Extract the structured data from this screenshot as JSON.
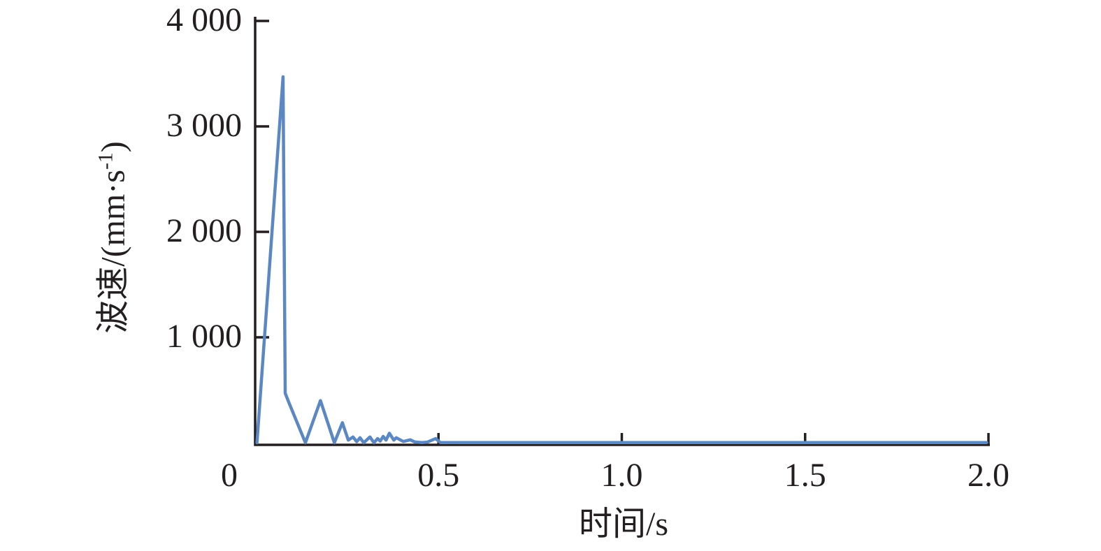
{
  "figure": {
    "background_color": "#ffffff",
    "axis_color": "#231f20",
    "text_color": "#231f20",
    "line_color": "#5b87c3"
  },
  "chart_data": {
    "type": "line",
    "title": "",
    "xlabel": "时间/s",
    "ylabel": "波速/(mm·s⁻¹)",
    "ylabel_parts": {
      "prefix": "波速/(mm·s",
      "superscript": "-1",
      "suffix": ")"
    },
    "xlim": [
      0,
      2.0
    ],
    "ylim": [
      0,
      4000
    ],
    "grid": false,
    "legend_position": "none",
    "origin_label": "0",
    "x_ticks": [
      {
        "value": 0.5,
        "label": "0.5"
      },
      {
        "value": 1.0,
        "label": "1.0"
      },
      {
        "value": 1.5,
        "label": "1.5"
      },
      {
        "value": 2.0,
        "label": "2.0"
      }
    ],
    "y_ticks": [
      {
        "value": 4000,
        "label": "4 000"
      },
      {
        "value": 3000,
        "label": "3 000"
      },
      {
        "value": 2000,
        "label": "2 000"
      },
      {
        "value": 1000,
        "label": "1 000"
      }
    ],
    "series": [
      {
        "name": "波速",
        "color": "#5b87c3",
        "points": [
          [
            0.005,
            0
          ],
          [
            0.076,
            3470
          ],
          [
            0.082,
            470
          ],
          [
            0.092,
            380
          ],
          [
            0.137,
            0
          ],
          [
            0.178,
            400
          ],
          [
            0.216,
            0
          ],
          [
            0.238,
            190
          ],
          [
            0.254,
            25
          ],
          [
            0.267,
            55
          ],
          [
            0.277,
            10
          ],
          [
            0.286,
            48
          ],
          [
            0.296,
            0
          ],
          [
            0.313,
            55
          ],
          [
            0.324,
            0
          ],
          [
            0.334,
            40
          ],
          [
            0.341,
            15
          ],
          [
            0.349,
            60
          ],
          [
            0.357,
            25
          ],
          [
            0.366,
            90
          ],
          [
            0.378,
            25
          ],
          [
            0.385,
            48
          ],
          [
            0.404,
            12
          ],
          [
            0.423,
            28
          ],
          [
            0.435,
            8
          ],
          [
            0.454,
            2
          ],
          [
            0.47,
            6
          ],
          [
            0.492,
            40
          ],
          [
            0.505,
            2
          ],
          [
            0.55,
            2
          ],
          [
            0.7,
            2
          ],
          [
            0.9,
            2
          ],
          [
            1.1,
            2
          ],
          [
            1.3,
            2
          ],
          [
            1.5,
            2
          ],
          [
            1.7,
            2
          ],
          [
            1.9,
            2
          ],
          [
            1.995,
            2
          ]
        ]
      }
    ]
  }
}
